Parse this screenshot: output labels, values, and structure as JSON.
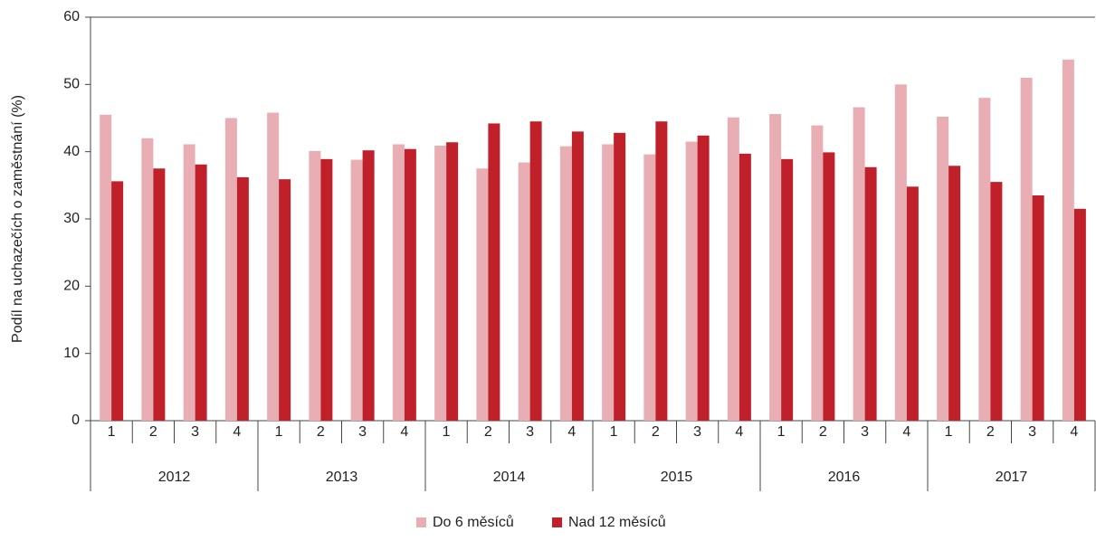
{
  "chart_data": {
    "type": "bar",
    "y_label": "Podíl na uchazečích o zaměstnání (%)",
    "categories": [
      "1",
      "2",
      "3",
      "4",
      "1",
      "2",
      "3",
      "4",
      "1",
      "2",
      "3",
      "4",
      "1",
      "2",
      "3",
      "4",
      "1",
      "2",
      "3",
      "4",
      "1",
      "2",
      "3",
      "4"
    ],
    "groups": [
      "2012",
      "2013",
      "2014",
      "2015",
      "2016",
      "2017"
    ],
    "series": [
      {
        "name": "Do 6 měsíců",
        "color": "#e8aeb4",
        "values": [
          45.5,
          42,
          41.1,
          45,
          45.8,
          40.1,
          38.8,
          41.1,
          40.9,
          37.5,
          38.4,
          40.8,
          41.1,
          39.6,
          41.5,
          45.1,
          45.6,
          43.9,
          46.6,
          50,
          45.2,
          48,
          51,
          53.7
        ]
      },
      {
        "name": "Nad 12 měsíců",
        "color": "#c0202a",
        "values": [
          35.6,
          37.5,
          38.1,
          36.2,
          35.9,
          38.9,
          40.2,
          40.4,
          41.4,
          44.2,
          44.5,
          43,
          42.8,
          44.5,
          42.4,
          39.7,
          38.9,
          39.9,
          37.7,
          34.8,
          37.9,
          35.5,
          33.5,
          31.5
        ]
      }
    ],
    "ylim": [
      0,
      60
    ],
    "yticks": [
      0,
      10,
      20,
      30,
      40,
      50,
      60
    ],
    "grid": false,
    "legend": "bottom"
  }
}
